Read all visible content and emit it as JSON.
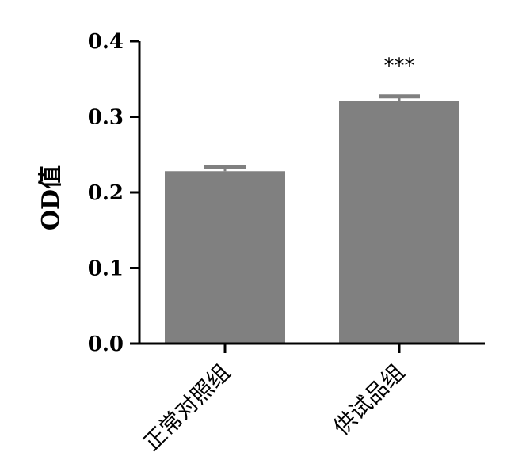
{
  "chart_data": {
    "type": "bar",
    "categories": [
      "正常对照组",
      "供试品组"
    ],
    "values": [
      0.228,
      0.321
    ],
    "errors": [
      0.006,
      0.006
    ],
    "significance": [
      "",
      "***"
    ],
    "ylabel": "OD值",
    "xlabel": "",
    "ylim": [
      0,
      0.4
    ],
    "yticks": [
      "0.0",
      "0.1",
      "0.2",
      "0.3",
      "0.4"
    ],
    "bar_color": "#808080",
    "grid": false
  }
}
